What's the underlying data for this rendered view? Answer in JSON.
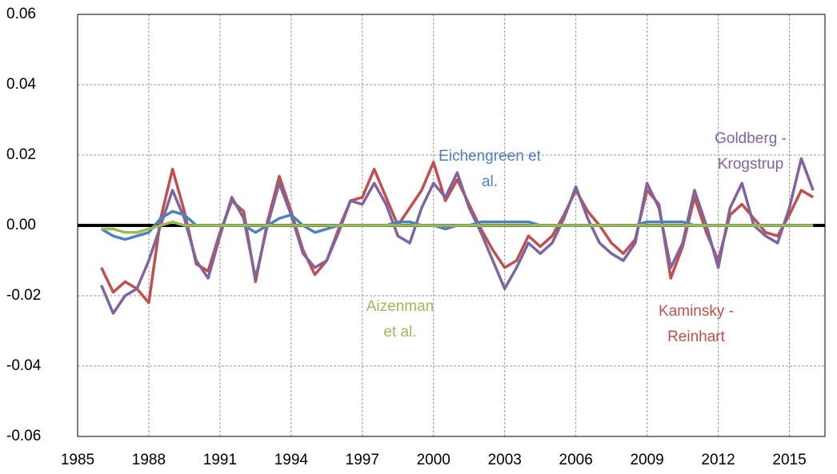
{
  "chart_data": {
    "type": "line",
    "x": [
      1986,
      1986.5,
      1987,
      1987.5,
      1988,
      1988.5,
      1989,
      1989.5,
      1990,
      1990.5,
      1991,
      1991.5,
      1992,
      1992.5,
      1993,
      1993.5,
      1994,
      1994.5,
      1995,
      1995.5,
      1996,
      1996.5,
      1997,
      1997.5,
      1998,
      1998.5,
      1999,
      1999.5,
      2000,
      2000.5,
      2001,
      2001.5,
      2002,
      2002.5,
      2003,
      2003.5,
      2004,
      2004.5,
      2005,
      2005.5,
      2006,
      2006.5,
      2007,
      2007.5,
      2008,
      2008.5,
      2009,
      2009.5,
      2010,
      2010.5,
      2011,
      2011.5,
      2012,
      2012.5,
      2013,
      2013.5,
      2014,
      2014.5,
      2015,
      2015.5,
      2016
    ],
    "series": [
      {
        "name": "Kaminsky - Reinhart",
        "color": "#c0504d",
        "values": [
          -0.012,
          -0.019,
          -0.016,
          -0.018,
          -0.022,
          0.002,
          0.016,
          0.004,
          -0.011,
          -0.013,
          -0.002,
          0.007,
          0.004,
          -0.016,
          0.001,
          0.014,
          0.004,
          -0.007,
          -0.014,
          -0.01,
          -0.001,
          0.007,
          0.008,
          0.016,
          0.008,
          0.0,
          0.005,
          0.01,
          0.018,
          0.007,
          0.013,
          0.006,
          -0.001,
          -0.007,
          -0.012,
          -0.01,
          -0.003,
          -0.006,
          -0.003,
          0.003,
          0.01,
          0.004,
          0.0,
          -0.005,
          -0.008,
          -0.004,
          0.01,
          0.006,
          -0.015,
          -0.006,
          0.008,
          -0.002,
          -0.01,
          0.003,
          0.006,
          0.002,
          -0.002,
          -0.003,
          0.003,
          0.01,
          0.008
        ]
      },
      {
        "name": "Goldberg - Krogstrup",
        "color": "#8064a2",
        "values": [
          -0.017,
          -0.025,
          -0.02,
          -0.018,
          -0.01,
          0.0,
          0.01,
          0.002,
          -0.01,
          -0.015,
          -0.003,
          0.008,
          0.002,
          -0.015,
          0.0,
          0.012,
          0.003,
          -0.008,
          -0.012,
          -0.01,
          -0.002,
          0.007,
          0.006,
          0.012,
          0.006,
          -0.003,
          -0.005,
          0.005,
          0.012,
          0.008,
          0.015,
          0.005,
          -0.002,
          -0.01,
          -0.018,
          -0.012,
          -0.005,
          -0.008,
          -0.005,
          0.002,
          0.011,
          0.002,
          -0.005,
          -0.008,
          -0.01,
          -0.005,
          0.012,
          0.005,
          -0.012,
          -0.005,
          0.01,
          0.0,
          -0.012,
          0.005,
          0.012,
          0.0,
          -0.003,
          -0.005,
          0.005,
          0.019,
          0.01
        ]
      },
      {
        "name": "Eichengreen et al.",
        "color": "#4f81bd",
        "values": [
          -0.001,
          -0.003,
          -0.004,
          -0.003,
          -0.002,
          0.002,
          0.004,
          0.003,
          0.0,
          0.0,
          0.0,
          0.0,
          0.0,
          -0.002,
          0.0,
          0.002,
          0.003,
          0.0,
          -0.002,
          -0.001,
          0.0,
          0.0,
          0.0,
          0.0,
          0.0,
          0.001,
          0.001,
          0.0,
          0.0,
          -0.001,
          0.0,
          0.0,
          0.001,
          0.001,
          0.001,
          0.001,
          0.001,
          0.0,
          0.0,
          0.0,
          0.0,
          0.0,
          0.0,
          0.0,
          0.0,
          0.0,
          0.001,
          0.001,
          0.001,
          0.001,
          0.0,
          0.0,
          0.0,
          0.0,
          0.0,
          0.0,
          0.0,
          0.0,
          0.0,
          0.0,
          0.0
        ]
      },
      {
        "name": "Aizenman et al.",
        "color": "#9bbb59",
        "values": [
          -0.001,
          -0.001,
          -0.002,
          -0.002,
          -0.001,
          0.0,
          0.001,
          0.0,
          0.0,
          0.0,
          0.0,
          0.0,
          0.0,
          0.0,
          0.0,
          0.0,
          0.0,
          0.0,
          0.0,
          0.0,
          0.0,
          0.0,
          0.0,
          0.0,
          0.0,
          0.0,
          0.0,
          0.0,
          0.0,
          0.0,
          0.0,
          0.0,
          0.0,
          0.0,
          0.0,
          0.0,
          0.0,
          0.0,
          0.0,
          0.0,
          0.0,
          0.0,
          0.0,
          0.0,
          0.0,
          0.0,
          0.0,
          0.0,
          0.0,
          0.0,
          0.0,
          0.0,
          0.0,
          0.0,
          0.0,
          0.0,
          0.0,
          0.0,
          0.0,
          0.0,
          0.0
        ]
      }
    ],
    "annotations": [
      {
        "lines": [
          "Kaminsky -",
          "Reinhart"
        ]
      },
      {
        "lines": [
          "Goldberg -",
          "Krogstrup"
        ]
      },
      {
        "lines": [
          "Eichengreen et",
          "al."
        ]
      },
      {
        "lines": [
          "Aizenman",
          "et al."
        ]
      }
    ],
    "xlim": [
      1985,
      2016.5
    ],
    "xticks": [
      1985,
      1988,
      1991,
      1994,
      1997,
      2000,
      2003,
      2006,
      2009,
      2012,
      2015
    ],
    "ylim": [
      -0.06,
      0.06
    ],
    "yticks": [
      {
        "value": -0.06,
        "label": "-0.06"
      },
      {
        "value": -0.04,
        "label": "-0.04"
      },
      {
        "value": -0.02,
        "label": "-0.02"
      },
      {
        "value": 0,
        "label": "0.00"
      },
      {
        "value": 0.02,
        "label": "0.02"
      },
      {
        "value": 0.04,
        "label": "0.04"
      },
      {
        "value": 0.06,
        "label": "0.06"
      }
    ],
    "grid": true
  }
}
